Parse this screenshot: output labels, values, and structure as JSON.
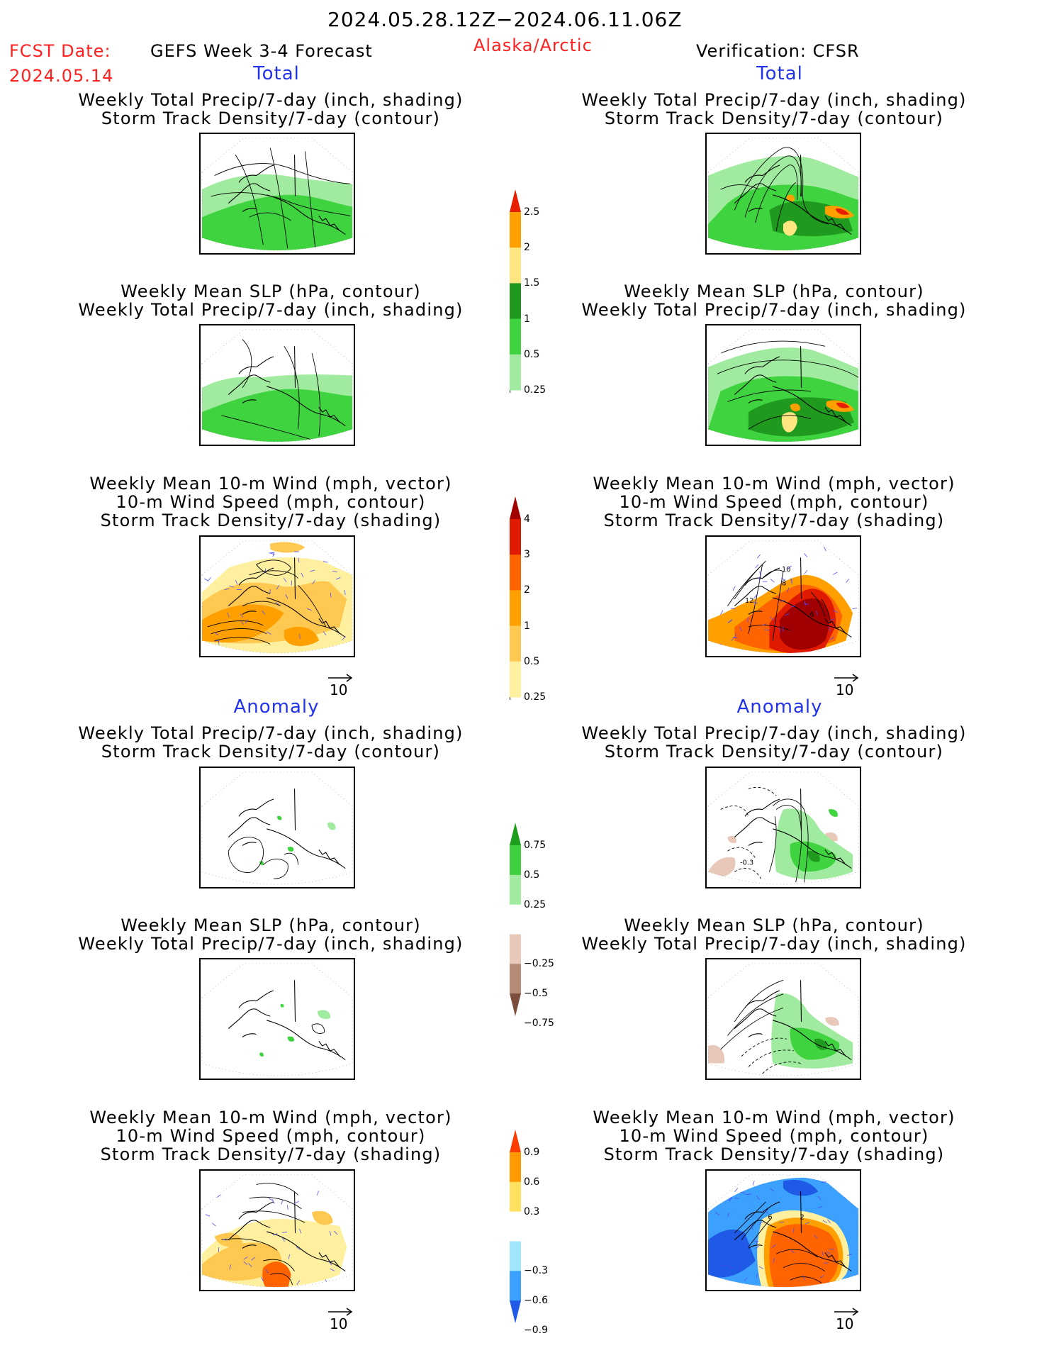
{
  "header": {
    "period": "2024.05.28.12Z−2024.06.11.06Z",
    "fcst_date_label": "FCST Date:",
    "fcst_date_value": "2024.05.14",
    "model": "GEFS Week 3-4 Forecast",
    "region": "Alaska/Arctic",
    "verification": "Verification: CFSR"
  },
  "sections": {
    "total_left": "Total",
    "total_right": "Total",
    "anomaly_left": "Anomaly",
    "anomaly_right": "Anomaly"
  },
  "panel_titles": {
    "precip_storm": [
      "Weekly Total Precip/7-day (inch, shading)",
      "Storm Track Density/7-day (contour)"
    ],
    "slp_precip": [
      "Weekly Mean SLP (hPa, contour)",
      "Weekly Total Precip/7-day (inch, shading)"
    ],
    "wind_storm": [
      "Weekly Mean 10-m Wind (mph, vector)",
      "10-m Wind Speed (mph, contour)",
      "Storm Track Density/7-day (shading)"
    ]
  },
  "panels": {
    "total_left_1": {
      "title": [
        "Weekly Total Precip/7-day (inch, shading)",
        "Storm Track Density/7-day (contour)"
      ]
    },
    "total_right_1": {
      "title": [
        "Weekly Total Precip/7-day (inch, shading)",
        "Storm Track Density/7-day (contour)"
      ]
    },
    "total_left_2": {
      "title": [
        "Weekly Mean SLP (hPa, contour)",
        "Weekly Total Precip/7-day (inch, shading)"
      ]
    },
    "total_right_2": {
      "title": [
        "Weekly Mean SLP (hPa, contour)",
        "Weekly Total Precip/7-day (inch, shading)"
      ]
    },
    "total_left_3": {
      "title": [
        "Weekly Mean 10-m Wind (mph, vector)",
        "10-m Wind Speed (mph, contour)",
        "Storm Track Density/7-day (shading)"
      ]
    },
    "total_right_3": {
      "title": [
        "Weekly Mean 10-m Wind (mph, vector)",
        "10-m Wind Speed (mph, contour)",
        "Storm Track Density/7-day (shading)"
      ],
      "labels": [
        "10",
        "8",
        "12",
        "6"
      ]
    },
    "anom_left_1": {
      "title": [
        "Weekly Total Precip/7-day (inch, shading)",
        "Storm Track Density/7-day (contour)"
      ]
    },
    "anom_right_1": {
      "title": [
        "Weekly Total Precip/7-day (inch, shading)",
        "Storm Track Density/7-day (contour)"
      ],
      "labels": [
        "-0.3"
      ]
    },
    "anom_left_2": {
      "title": [
        "Weekly Mean SLP (hPa, contour)",
        "Weekly Total Precip/7-day (inch, shading)"
      ]
    },
    "anom_right_2": {
      "title": [
        "Weekly Mean SLP (hPa, contour)",
        "Weekly Total Precip/7-day (inch, shading)"
      ]
    },
    "anom_left_3": {
      "title": [
        "Weekly Mean 10-m Wind (mph, vector)",
        "10-m Wind Speed (mph, contour)",
        "Storm Track Density/7-day (shading)"
      ]
    },
    "anom_right_3": {
      "title": [
        "Weekly Mean 10-m Wind (mph, vector)",
        "10-m Wind Speed (mph, contour)",
        "Storm Track Density/7-day (shading)"
      ],
      "labels": [
        "6",
        "2"
      ]
    }
  },
  "colorbars": {
    "precip_total": {
      "labels": [
        "2.5",
        "2",
        "1.5",
        "1",
        "0.5",
        "0.25"
      ],
      "colors": [
        "#e81e00",
        "#ff9f00",
        "#ffe680",
        "#1f9a1f",
        "#3fd33f",
        "#a0eb9f"
      ]
    },
    "storm_total": {
      "labels": [
        "4",
        "3",
        "2",
        "1",
        "0.5",
        "0.25"
      ],
      "colors": [
        "#a00000",
        "#e01a00",
        "#ff6400",
        "#ffa000",
        "#ffc850",
        "#fff09f"
      ]
    },
    "precip_anom": {
      "labels": [
        "0.75",
        "0.5",
        "0.25",
        "−0.25",
        "−0.5",
        "−0.75"
      ],
      "colors": [
        "#1e9e1e",
        "#3fd03f",
        "#a0eba0",
        "#ffffff",
        "#e8c8b8",
        "#b88b78",
        "#7a4d3c"
      ]
    },
    "storm_anom": {
      "labels": [
        "0.9",
        "0.6",
        "0.3",
        "−0.3",
        "−0.6",
        "−0.9"
      ],
      "colors": [
        "#ff3c00",
        "#ff9a00",
        "#ffe160",
        "#ffffff",
        "#a0e6ff",
        "#3ca0ff",
        "#1e5ae6"
      ]
    }
  },
  "vector_reference": {
    "value": "10"
  },
  "palette": {
    "precip_light": "#a0eb9f",
    "precip_mid": "#3fd33f",
    "precip_dark": "#1f9a1f",
    "precip_yellow": "#ffe680",
    "precip_orange": "#ff9f00",
    "precip_red": "#e81e00",
    "storm_yellow": "#fff09f",
    "storm_lorange": "#ffc850",
    "storm_orange": "#ffa000",
    "storm_dorange": "#ff6400",
    "storm_red": "#e01a00",
    "storm_dred": "#a00000",
    "anom_blue": "#3ca0ff",
    "anom_dblue": "#1e5ae6",
    "anom_brown": "#e8c8b8",
    "vector_blue": "#4b4bff",
    "section_blue": "#2233ee",
    "header_red": "#ff2020"
  }
}
